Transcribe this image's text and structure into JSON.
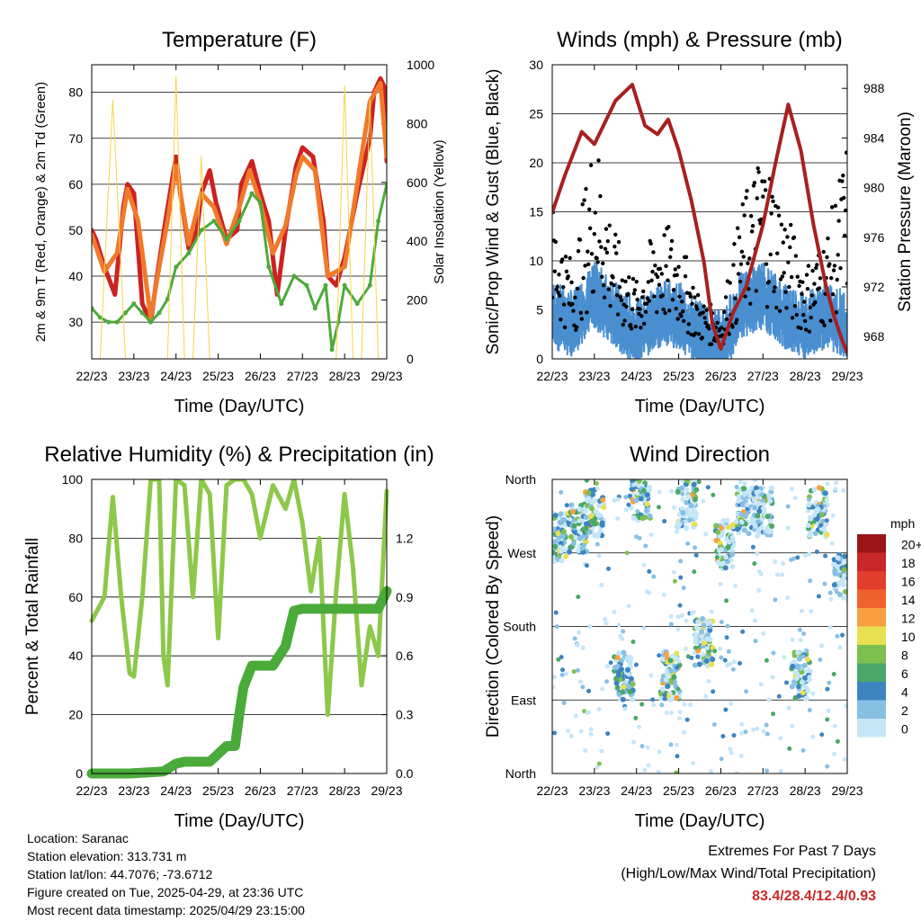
{
  "chart_data": [
    {
      "type": "line",
      "title": "Temperature (F)",
      "xlabel": "Time (Day/UTC)",
      "ylabel": "2m & 9m T (Red, Orange) & 2m Td (Green)",
      "ylabel2": "Solar Insolation (Yellow)",
      "x_ticks": [
        "22/23",
        "23/23",
        "24/23",
        "25/23",
        "26/23",
        "27/23",
        "28/23",
        "29/23"
      ],
      "ylim": [
        22,
        86
      ],
      "y_ticks": [
        30,
        40,
        50,
        60,
        70,
        80
      ],
      "y2lim": [
        0,
        1000
      ],
      "y2_ticks": [
        0,
        200,
        400,
        600,
        800,
        1000
      ],
      "grid": true,
      "series": [
        {
          "name": "2m T",
          "color": "#cc2222",
          "axis": "left",
          "x": [
            0,
            0.1,
            0.3,
            0.55,
            0.75,
            0.85,
            1.0,
            1.2,
            1.4,
            1.55,
            1.75,
            2.0,
            2.1,
            2.3,
            2.5,
            2.6,
            2.8,
            2.95,
            3.2,
            3.45,
            3.55,
            3.8,
            4.0,
            4.2,
            4.4,
            4.6,
            4.85,
            5.0,
            5.25,
            5.5,
            5.6,
            5.8,
            6.0,
            6.3,
            6.6,
            6.7,
            6.85,
            6.95,
            7.0
          ],
          "y": [
            50,
            48,
            42,
            36,
            55,
            60,
            58,
            34,
            30,
            40,
            52,
            66,
            58,
            46,
            50,
            58,
            63,
            56,
            48,
            50,
            60,
            65,
            58,
            52,
            36,
            50,
            64,
            68,
            66,
            52,
            40,
            38,
            44,
            58,
            70,
            80,
            83,
            81,
            65
          ]
        },
        {
          "name": "9m T",
          "color": "#f07a2a",
          "axis": "left",
          "x": [
            0,
            0.3,
            0.6,
            0.85,
            1.1,
            1.4,
            1.6,
            1.8,
            2.0,
            2.3,
            2.6,
            2.9,
            3.2,
            3.5,
            3.75,
            4.0,
            4.3,
            4.6,
            4.85,
            5.0,
            5.3,
            5.6,
            6.0,
            6.3,
            6.6,
            6.85,
            7.0
          ],
          "y": [
            49,
            41,
            45,
            59,
            52,
            31,
            42,
            52,
            64,
            47,
            58,
            55,
            47,
            55,
            63,
            56,
            45,
            51,
            62,
            66,
            63,
            40,
            42,
            60,
            78,
            82,
            66
          ]
        },
        {
          "name": "2m Td",
          "color": "#4caa3c",
          "axis": "left",
          "x": [
            0,
            0.2,
            0.4,
            0.6,
            0.8,
            1.0,
            1.2,
            1.4,
            1.6,
            1.8,
            2.0,
            2.3,
            2.6,
            2.9,
            3.2,
            3.5,
            3.8,
            4.0,
            4.2,
            4.5,
            4.8,
            5.1,
            5.3,
            5.55,
            5.7,
            5.85,
            6.0,
            6.3,
            6.6,
            6.8,
            7.0
          ],
          "y": [
            33,
            31,
            30,
            30,
            32,
            34,
            32,
            30,
            32,
            35,
            42,
            45,
            50,
            52,
            48,
            52,
            58,
            56,
            42,
            34,
            40,
            38,
            33,
            38,
            24,
            30,
            38,
            34,
            38,
            52,
            60
          ]
        },
        {
          "name": "Solar Insolation",
          "color": "#f4d54a",
          "axis": "right",
          "x": [
            0,
            0.2,
            0.5,
            0.8,
            1.0,
            1.3,
            1.6,
            1.8,
            2.0,
            2.2,
            2.4,
            2.6,
            2.8,
            3.0,
            3.2,
            3.4,
            3.6,
            3.8,
            4.0,
            4.2,
            4.4,
            4.6,
            4.8,
            5.0,
            5.2,
            5.4,
            5.6,
            5.8,
            6.0,
            6.2,
            6.4,
            6.6,
            6.8,
            7.0
          ],
          "y": [
            0,
            0,
            880,
            0,
            0,
            0,
            0,
            0,
            960,
            0,
            0,
            690,
            0,
            0,
            0,
            0,
            0,
            0,
            0,
            0,
            0,
            0,
            0,
            0,
            0,
            0,
            0,
            0,
            930,
            0,
            0,
            880,
            0,
            0
          ]
        }
      ]
    },
    {
      "type": "scatter",
      "title": "Winds (mph) & Pressure (mb)",
      "xlabel": "Time (Day/UTC)",
      "ylabel": "Sonic/Prop Wind & Gust (Blue, Black)",
      "ylabel2": "Station Pressure (Maroon)",
      "x_ticks": [
        "22/23",
        "23/23",
        "24/23",
        "25/23",
        "26/23",
        "27/23",
        "28/23",
        "29/23"
      ],
      "ylim": [
        0,
        30
      ],
      "y_ticks": [
        0,
        5,
        10,
        15,
        20,
        25,
        30
      ],
      "y2lim": [
        966.2,
        989.9
      ],
      "y2_ticks": [
        968,
        972,
        976,
        980,
        984,
        988
      ],
      "grid": true,
      "series": [
        {
          "name": "Wind",
          "color": "#4a8fd0",
          "axis": "left",
          "x": [
            0,
            0.5,
            1.0,
            1.5,
            2.0,
            2.5,
            3.0,
            3.5,
            4.0,
            4.5,
            5.0,
            5.5,
            6.0,
            6.5,
            7.0
          ],
          "y": [
            5,
            4,
            7,
            5,
            3,
            5,
            5,
            3,
            2,
            6,
            7,
            5,
            4,
            5,
            4
          ]
        },
        {
          "name": "Gust",
          "color": "#000000",
          "axis": "left",
          "x": [
            0,
            0.5,
            1.0,
            1.5,
            2.0,
            2.5,
            3.0,
            3.5,
            4.0,
            4.5,
            5.0,
            5.5,
            6.0,
            6.5,
            7.0
          ],
          "y": [
            10,
            6,
            15,
            8,
            5,
            9,
            8,
            4,
            3,
            10,
            14,
            10,
            6,
            8,
            14
          ]
        },
        {
          "name": "Pressure",
          "color": "#a82020",
          "axis": "right",
          "x": [
            0,
            0.3,
            0.7,
            1.0,
            1.5,
            1.9,
            2.2,
            2.5,
            2.75,
            3.0,
            3.3,
            3.6,
            3.8,
            4.0,
            4.3,
            4.6,
            5.0,
            5.3,
            5.6,
            5.9,
            6.2,
            6.5,
            6.7,
            6.9,
            7.0
          ],
          "y": [
            978,
            981,
            984.5,
            983.5,
            987,
            988.3,
            985,
            984.3,
            985.5,
            983,
            979,
            974,
            969,
            967,
            970,
            972,
            977,
            982,
            986.7,
            983,
            977,
            972,
            969.5,
            967.5,
            966.7
          ]
        }
      ]
    },
    {
      "type": "line",
      "title": "Relative Humidity (%) & Precipitation (in)",
      "xlabel": "Time (Day/UTC)",
      "ylabel": "Percent & Total Rainfall",
      "x_ticks": [
        "22/23",
        "23/23",
        "24/23",
        "25/23",
        "26/23",
        "27/23",
        "28/23",
        "29/23"
      ],
      "ylim": [
        0,
        100
      ],
      "y_ticks": [
        0,
        20,
        40,
        60,
        80,
        100
      ],
      "y2lim": [
        0,
        1.5
      ],
      "y2_ticks": [
        "0.0",
        "0.3",
        "0.6",
        "0.9",
        "1.2"
      ],
      "grid": true,
      "series": [
        {
          "name": "RH",
          "color": "#8cc84a",
          "axis": "left",
          "x": [
            0,
            0.3,
            0.5,
            0.7,
            0.9,
            1.0,
            1.2,
            1.4,
            1.6,
            1.7,
            1.8,
            2.0,
            2.2,
            2.4,
            2.6,
            2.8,
            3.0,
            3.2,
            3.4,
            3.6,
            3.8,
            4.0,
            4.3,
            4.6,
            4.8,
            5.0,
            5.2,
            5.4,
            5.6,
            5.8,
            6.0,
            6.2,
            6.4,
            6.6,
            6.8,
            7.0
          ],
          "y": [
            52,
            60,
            94,
            60,
            34,
            33,
            60,
            100,
            100,
            40,
            30,
            100,
            98,
            60,
            100,
            95,
            46,
            98,
            100,
            100,
            95,
            80,
            98,
            90,
            100,
            85,
            62,
            80,
            20,
            62,
            95,
            70,
            30,
            50,
            40,
            96
          ]
        },
        {
          "name": "Total Rainfall",
          "color": "#4aaa3a",
          "axis": "right",
          "x": [
            0,
            0.9,
            1.7,
            2.0,
            2.2,
            2.8,
            3.2,
            3.4,
            3.5,
            3.6,
            3.8,
            4.0,
            4.3,
            4.6,
            4.8,
            5.0,
            5.2,
            5.4,
            6.0,
            6.8,
            7.0
          ],
          "y": [
            0,
            0,
            0.01,
            0.05,
            0.06,
            0.06,
            0.14,
            0.14,
            0.3,
            0.44,
            0.55,
            0.55,
            0.55,
            0.65,
            0.83,
            0.84,
            0.84,
            0.84,
            0.84,
            0.84,
            0.93
          ]
        }
      ]
    },
    {
      "type": "scatter",
      "title": "Wind Direction",
      "xlabel": "Time (Day/UTC)",
      "ylabel": "Direction (Colored By Speed)",
      "x_ticks": [
        "22/23",
        "23/23",
        "24/23",
        "25/23",
        "26/23",
        "27/23",
        "28/23",
        "29/23"
      ],
      "y_ticks": [
        "North",
        "East",
        "South",
        "West",
        "North"
      ],
      "ylim": [
        0,
        360
      ],
      "grid": true,
      "clusters": [
        {
          "x": 0.1,
          "y": 290
        },
        {
          "x": 0.6,
          "y": 300
        },
        {
          "x": 1.0,
          "y": 320
        },
        {
          "x": 1.7,
          "y": 120
        },
        {
          "x": 2.8,
          "y": 120
        },
        {
          "x": 2.1,
          "y": 340
        },
        {
          "x": 3.2,
          "y": 330
        },
        {
          "x": 3.6,
          "y": 160
        },
        {
          "x": 4.1,
          "y": 280
        },
        {
          "x": 4.6,
          "y": 320
        },
        {
          "x": 5.0,
          "y": 320
        },
        {
          "x": 5.9,
          "y": 120
        },
        {
          "x": 6.3,
          "y": 320
        },
        {
          "x": 6.9,
          "y": 240
        }
      ],
      "legend": {
        "title": "mph",
        "labels": [
          "20+",
          "18",
          "16",
          "14",
          "12",
          "10",
          "8",
          "6",
          "4",
          "2",
          "0"
        ],
        "colors": [
          "#9a1418",
          "#c8282a",
          "#e23e2c",
          "#f0622c",
          "#f8a040",
          "#e8e050",
          "#7cc050",
          "#4aa868",
          "#3c84c0",
          "#88c0e4",
          "#c6e6f8"
        ]
      }
    }
  ],
  "info": {
    "location": "Location: Saranac",
    "elevation": "Station elevation: 313.731 m",
    "latlon": "Station lat/lon: 44.7076; -73.6712",
    "created": "Figure created on Tue, 2025-04-29, at 23:36 UTC",
    "recent": "Most recent data timestamp: 2025/04/29 23:15:00"
  },
  "extremes": {
    "title": "Extremes For Past 7 Days",
    "subtitle": "(High/Low/Max Wind/Total Precipitation)",
    "values": "83.4/28.4/12.4/0.93"
  }
}
